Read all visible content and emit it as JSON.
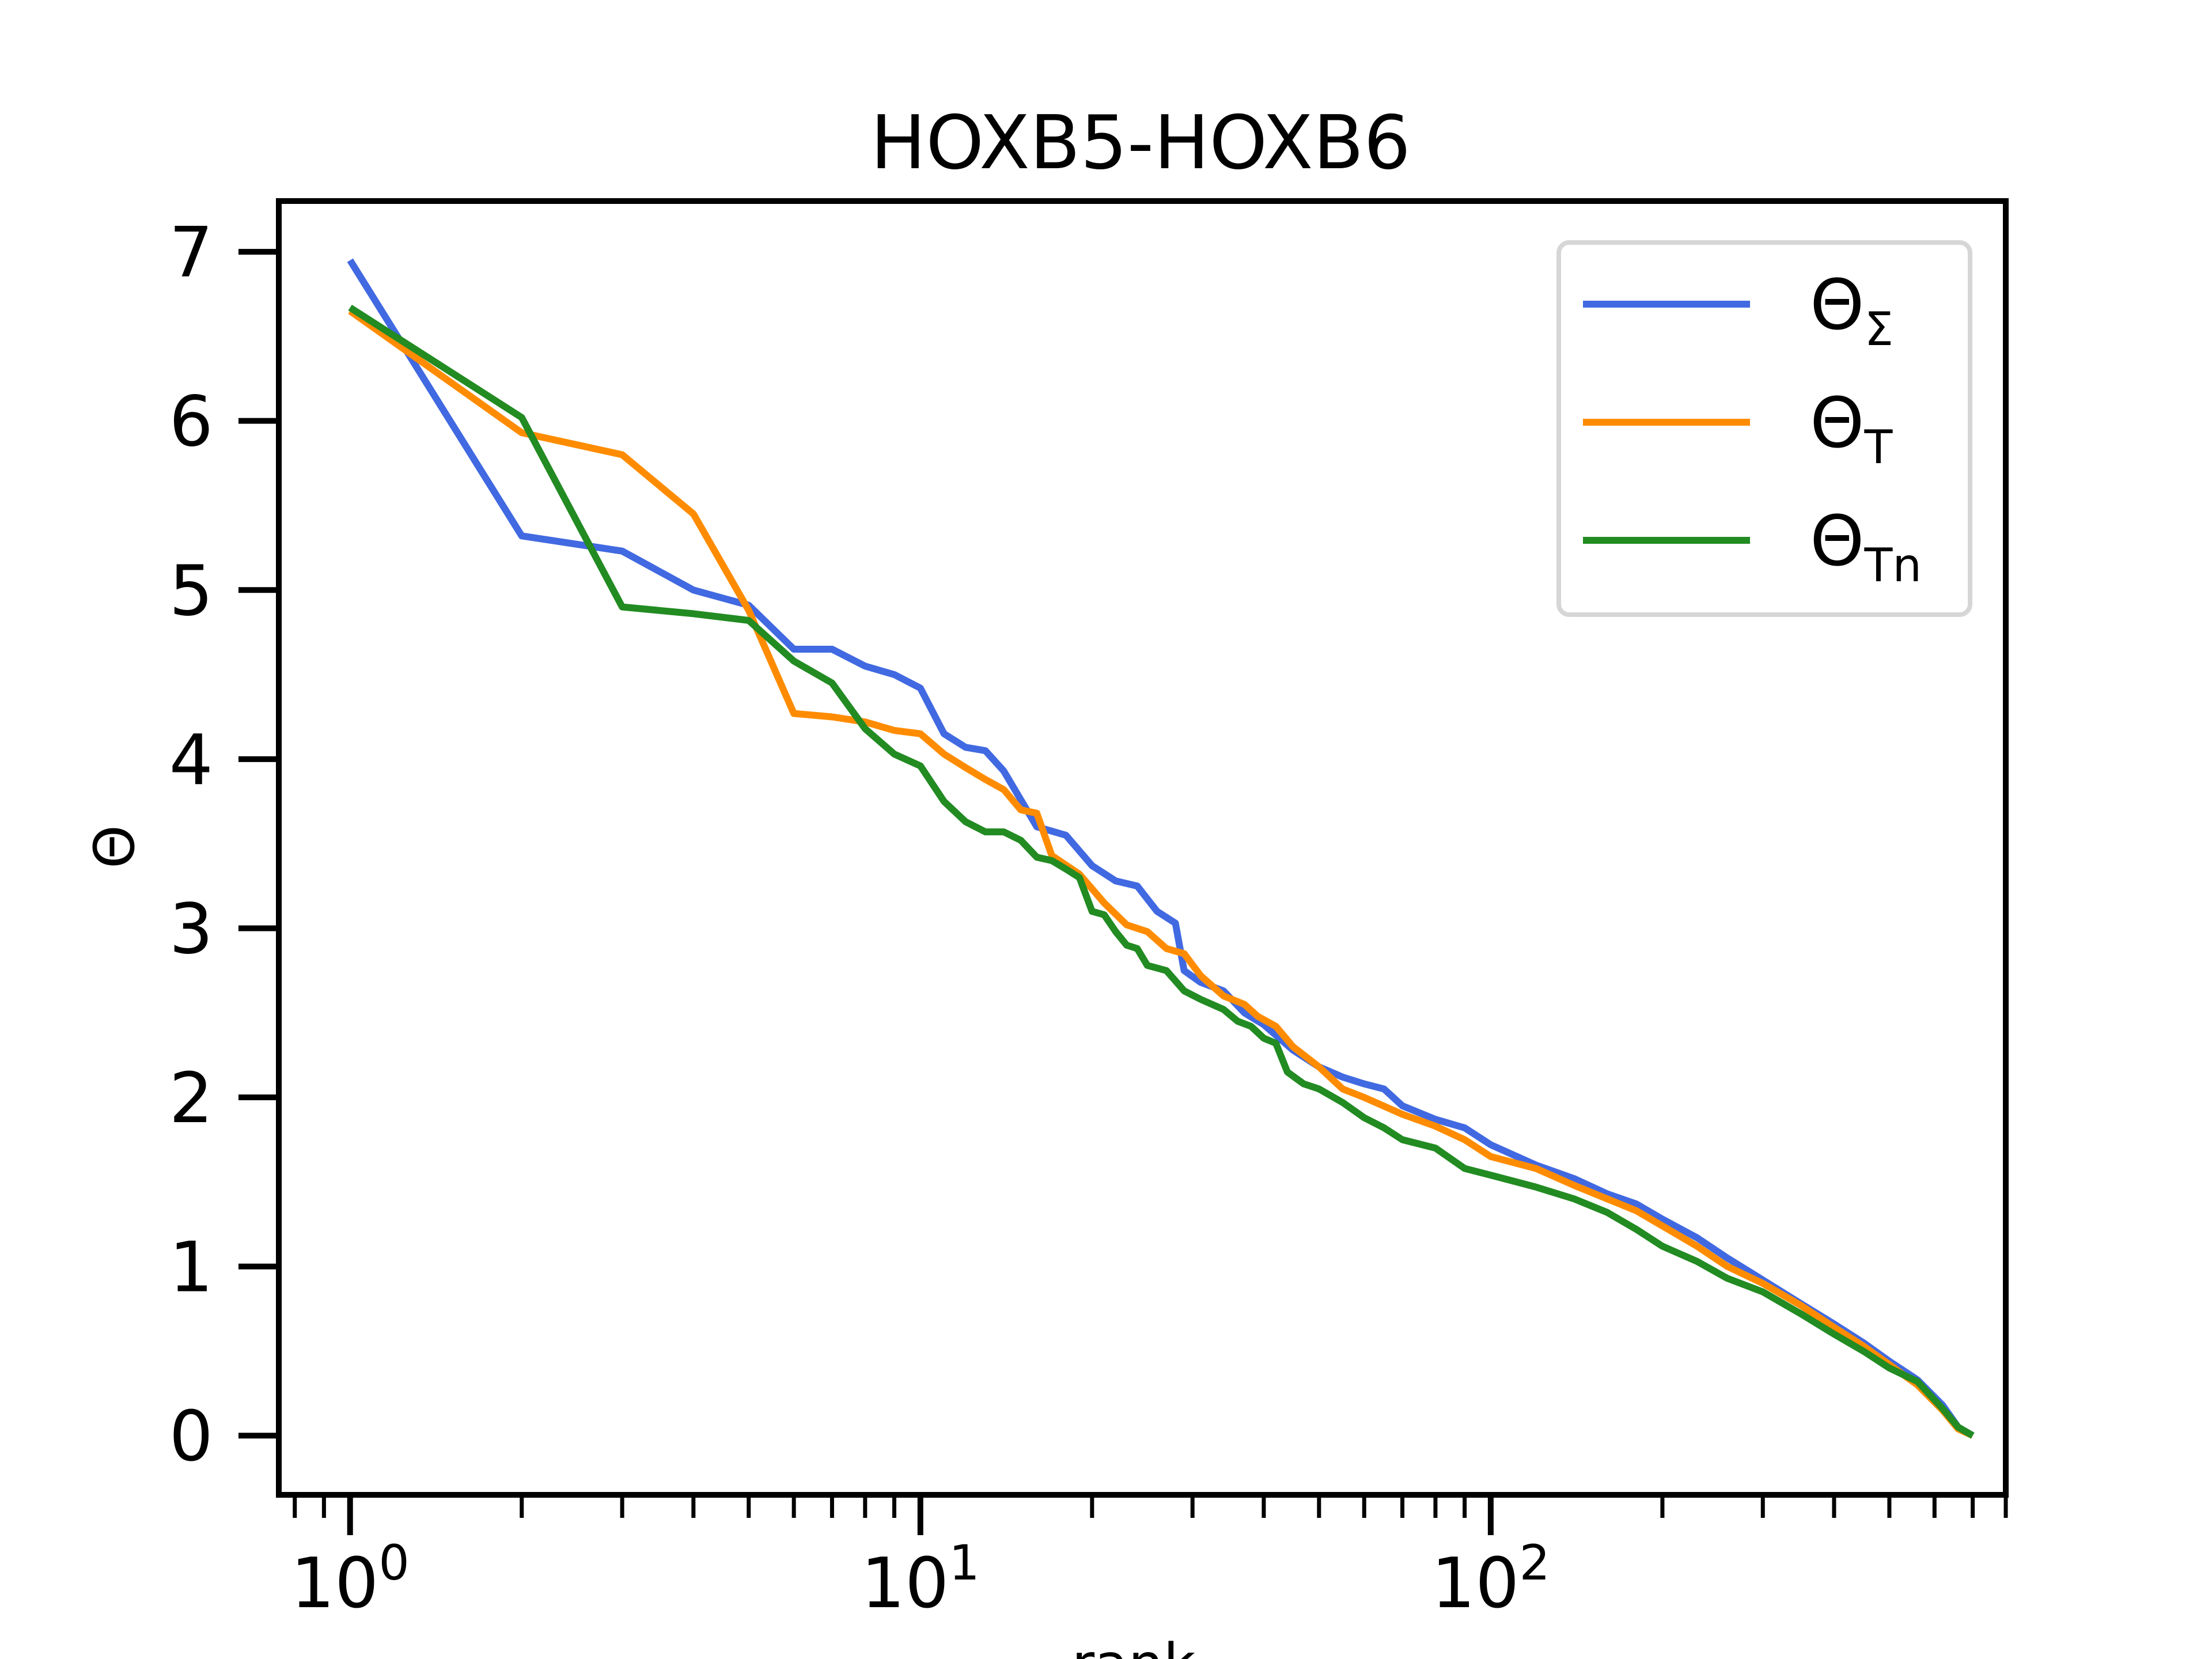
{
  "chart_data": {
    "type": "line",
    "title": "HOXB5-HOXB6",
    "xlabel": "rank",
    "ylabel": "Θ",
    "xscale": "log",
    "xlim": [
      0.75,
      800
    ],
    "ylim": [
      -0.35,
      7.3
    ],
    "grid": false,
    "legend_position": "top-right",
    "x_ticks": [
      {
        "value": 1,
        "base": "10",
        "exp": "0"
      },
      {
        "value": 10,
        "base": "10",
        "exp": "1"
      },
      {
        "value": 100,
        "base": "10",
        "exp": "2"
      }
    ],
    "y_ticks": [
      {
        "value": 0,
        "label": "0"
      },
      {
        "value": 1,
        "label": "1"
      },
      {
        "value": 2,
        "label": "2"
      },
      {
        "value": 3,
        "label": "3"
      },
      {
        "value": 4,
        "label": "4"
      },
      {
        "value": 5,
        "label": "5"
      },
      {
        "value": 6,
        "label": "6"
      },
      {
        "value": 7,
        "label": "7"
      }
    ],
    "series": [
      {
        "name": "Θ",
        "subscript": "Σ",
        "color": "#4169e1",
        "points": [
          [
            1,
            6.95
          ],
          [
            2,
            5.32
          ],
          [
            3,
            5.23
          ],
          [
            4,
            5.0
          ],
          [
            5,
            4.91
          ],
          [
            6,
            4.65
          ],
          [
            7,
            4.65
          ],
          [
            8,
            4.55
          ],
          [
            9,
            4.5
          ],
          [
            10,
            4.42
          ],
          [
            11,
            4.15
          ],
          [
            12,
            4.07
          ],
          [
            13,
            4.05
          ],
          [
            14,
            3.93
          ],
          [
            16,
            3.6
          ],
          [
            18,
            3.55
          ],
          [
            20,
            3.37
          ],
          [
            22,
            3.28
          ],
          [
            24,
            3.25
          ],
          [
            26,
            3.1
          ],
          [
            28,
            3.03
          ],
          [
            29,
            2.75
          ],
          [
            31,
            2.68
          ],
          [
            34,
            2.63
          ],
          [
            37,
            2.5
          ],
          [
            40,
            2.43
          ],
          [
            45,
            2.28
          ],
          [
            50,
            2.18
          ],
          [
            55,
            2.12
          ],
          [
            60,
            2.08
          ],
          [
            65,
            2.05
          ],
          [
            70,
            1.95
          ],
          [
            80,
            1.87
          ],
          [
            90,
            1.82
          ],
          [
            100,
            1.72
          ],
          [
            120,
            1.6
          ],
          [
            140,
            1.52
          ],
          [
            160,
            1.43
          ],
          [
            180,
            1.37
          ],
          [
            200,
            1.28
          ],
          [
            230,
            1.17
          ],
          [
            260,
            1.05
          ],
          [
            300,
            0.92
          ],
          [
            350,
            0.78
          ],
          [
            400,
            0.66
          ],
          [
            450,
            0.55
          ],
          [
            500,
            0.44
          ],
          [
            560,
            0.33
          ],
          [
            620,
            0.18
          ],
          [
            660,
            0.05
          ],
          [
            700,
            0.0
          ]
        ]
      },
      {
        "name": "Θ",
        "subscript": "T",
        "color": "#ff8c00",
        "points": [
          [
            1,
            6.65
          ],
          [
            2,
            5.93
          ],
          [
            3,
            5.8
          ],
          [
            4,
            5.45
          ],
          [
            5,
            4.88
          ],
          [
            6,
            4.27
          ],
          [
            7,
            4.25
          ],
          [
            8,
            4.22
          ],
          [
            9,
            4.17
          ],
          [
            10,
            4.15
          ],
          [
            11,
            4.03
          ],
          [
            12,
            3.95
          ],
          [
            13,
            3.88
          ],
          [
            14,
            3.82
          ],
          [
            15,
            3.7
          ],
          [
            16,
            3.68
          ],
          [
            17,
            3.43
          ],
          [
            19,
            3.32
          ],
          [
            21,
            3.15
          ],
          [
            23,
            3.02
          ],
          [
            25,
            2.98
          ],
          [
            27,
            2.88
          ],
          [
            29,
            2.85
          ],
          [
            31,
            2.72
          ],
          [
            34,
            2.6
          ],
          [
            37,
            2.55
          ],
          [
            39,
            2.48
          ],
          [
            42,
            2.42
          ],
          [
            45,
            2.3
          ],
          [
            50,
            2.18
          ],
          [
            55,
            2.05
          ],
          [
            60,
            2.0
          ],
          [
            70,
            1.9
          ],
          [
            80,
            1.83
          ],
          [
            90,
            1.75
          ],
          [
            100,
            1.65
          ],
          [
            120,
            1.58
          ],
          [
            140,
            1.48
          ],
          [
            160,
            1.4
          ],
          [
            180,
            1.33
          ],
          [
            200,
            1.24
          ],
          [
            230,
            1.12
          ],
          [
            260,
            1.0
          ],
          [
            300,
            0.9
          ],
          [
            350,
            0.77
          ],
          [
            400,
            0.64
          ],
          [
            450,
            0.53
          ],
          [
            500,
            0.42
          ],
          [
            560,
            0.3
          ],
          [
            620,
            0.15
          ],
          [
            660,
            0.04
          ],
          [
            700,
            0.0
          ]
        ]
      },
      {
        "name": "Θ",
        "subscript": "Tn",
        "color": "#228b22",
        "points": [
          [
            1,
            6.67
          ],
          [
            2,
            6.02
          ],
          [
            3,
            4.9
          ],
          [
            4,
            4.86
          ],
          [
            5,
            4.82
          ],
          [
            6,
            4.58
          ],
          [
            7,
            4.45
          ],
          [
            8,
            4.18
          ],
          [
            9,
            4.03
          ],
          [
            10,
            3.96
          ],
          [
            11,
            3.75
          ],
          [
            12,
            3.63
          ],
          [
            13,
            3.57
          ],
          [
            14,
            3.57
          ],
          [
            15,
            3.52
          ],
          [
            16,
            3.42
          ],
          [
            17,
            3.4
          ],
          [
            18,
            3.35
          ],
          [
            19,
            3.3
          ],
          [
            20,
            3.1
          ],
          [
            21,
            3.08
          ],
          [
            22,
            2.98
          ],
          [
            23,
            2.9
          ],
          [
            24,
            2.88
          ],
          [
            25,
            2.78
          ],
          [
            27,
            2.75
          ],
          [
            29,
            2.63
          ],
          [
            31,
            2.58
          ],
          [
            34,
            2.52
          ],
          [
            36,
            2.45
          ],
          [
            38,
            2.42
          ],
          [
            40,
            2.35
          ],
          [
            42,
            2.32
          ],
          [
            44,
            2.15
          ],
          [
            47,
            2.08
          ],
          [
            50,
            2.05
          ],
          [
            55,
            1.97
          ],
          [
            60,
            1.88
          ],
          [
            65,
            1.82
          ],
          [
            70,
            1.75
          ],
          [
            80,
            1.7
          ],
          [
            90,
            1.58
          ],
          [
            100,
            1.54
          ],
          [
            120,
            1.47
          ],
          [
            140,
            1.4
          ],
          [
            160,
            1.32
          ],
          [
            180,
            1.22
          ],
          [
            200,
            1.12
          ],
          [
            230,
            1.03
          ],
          [
            260,
            0.93
          ],
          [
            300,
            0.85
          ],
          [
            350,
            0.72
          ],
          [
            400,
            0.6
          ],
          [
            450,
            0.5
          ],
          [
            500,
            0.4
          ],
          [
            560,
            0.32
          ],
          [
            620,
            0.16
          ],
          [
            660,
            0.05
          ],
          [
            700,
            0.0
          ]
        ]
      }
    ]
  }
}
